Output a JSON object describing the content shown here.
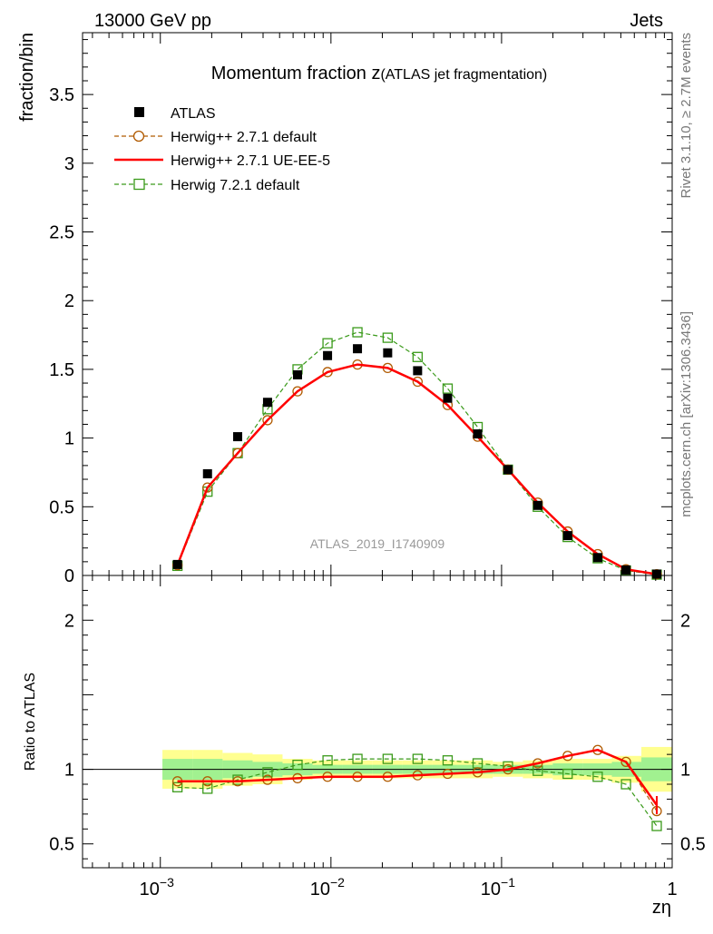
{
  "header": {
    "left": "13000 GeV pp",
    "right": "Jets"
  },
  "side_labels": {
    "rivet": "Rivet 3.1.10, ≥ 2.7M events",
    "mcplots": "mcplots.cern.ch [arXiv:1306.3436]"
  },
  "chart_data": [
    {
      "type": "line",
      "title": "Momentum fraction z",
      "subtitle": "(ATLAS jet fragmentation)",
      "watermark": "ATLAS_2019_I1740909",
      "ylabel": "fraction/bin",
      "xscale": "log",
      "xlim": [
        0.00035,
        1.0
      ],
      "ylim": [
        0,
        3.95
      ],
      "yticks": [
        0,
        0.5,
        1,
        1.5,
        2,
        2.5,
        3,
        3.5
      ],
      "ytick_labels": [
        "0",
        "0.5",
        "1",
        "1.5",
        "2",
        "2.5",
        "3",
        "3.5"
      ],
      "legend_position": "top-left",
      "x": [
        0.00126,
        0.00189,
        0.00284,
        0.00425,
        0.00637,
        0.00955,
        0.0143,
        0.0215,
        0.0322,
        0.0483,
        0.0724,
        0.109,
        0.163,
        0.244,
        0.366,
        0.536,
        0.812
      ],
      "series": [
        {
          "name": "ATLAS",
          "style": "data",
          "color": "#000000",
          "values": [
            0.08,
            0.74,
            1.01,
            1.26,
            1.46,
            1.6,
            1.65,
            1.62,
            1.49,
            1.29,
            1.03,
            0.77,
            0.51,
            0.29,
            0.13,
            0.04,
            0.01
          ]
        },
        {
          "name": "Herwig++ 2.7.1 default",
          "style": "dashed-circle",
          "color": "#b05a00",
          "values": [
            0.075,
            0.64,
            0.89,
            1.13,
            1.34,
            1.48,
            1.535,
            1.51,
            1.41,
            1.24,
            1.01,
            0.77,
            0.53,
            0.32,
            0.155,
            0.045,
            0.009
          ]
        },
        {
          "name": "Herwig++ 2.7.1 UE-EE-5",
          "style": "solid",
          "color": "#ff0000",
          "values": [
            0.075,
            0.64,
            0.89,
            1.13,
            1.34,
            1.48,
            1.535,
            1.51,
            1.41,
            1.24,
            1.01,
            0.77,
            0.53,
            0.32,
            0.155,
            0.045,
            0.009
          ]
        },
        {
          "name": "Herwig 7.2.1 default",
          "style": "dashed-square",
          "color": "#3a9a1a",
          "values": [
            0.07,
            0.61,
            0.89,
            1.21,
            1.5,
            1.69,
            1.77,
            1.73,
            1.59,
            1.36,
            1.08,
            0.77,
            0.5,
            0.28,
            0.125,
            0.036,
            0.006
          ]
        }
      ]
    },
    {
      "type": "line",
      "ylabel": "Ratio to ATLAS",
      "xlabel": "zη",
      "xscale": "log",
      "xlim": [
        0.00035,
        1.0
      ],
      "ylim": [
        0.34,
        2.3
      ],
      "yticks": [
        0.5,
        1,
        2
      ],
      "ytick_labels": [
        "0.5",
        "1",
        "2"
      ],
      "xtick_labels": [
        "10",
        "10",
        "10",
        "1"
      ],
      "xtick_exponents": [
        "−3",
        "−2",
        "−1",
        ""
      ],
      "xtick_values": [
        0.001,
        0.01,
        0.1,
        1
      ],
      "band_total": [
        0.13,
        0.13,
        0.11,
        0.1,
        0.07,
        0.06,
        0.06,
        0.06,
        0.06,
        0.06,
        0.06,
        0.05,
        0.06,
        0.07,
        0.07,
        0.09,
        0.15
      ],
      "band_stat": [
        0.07,
        0.07,
        0.06,
        0.05,
        0.04,
        0.03,
        0.03,
        0.03,
        0.03,
        0.03,
        0.03,
        0.03,
        0.03,
        0.04,
        0.04,
        0.05,
        0.08
      ],
      "series": [
        {
          "name": "Herwig++ 2.7.1 default",
          "color": "#b05a00",
          "values": [
            0.92,
            0.92,
            0.92,
            0.93,
            0.94,
            0.95,
            0.95,
            0.95,
            0.96,
            0.97,
            0.98,
            1.0,
            1.04,
            1.09,
            1.13,
            1.05,
            0.72
          ]
        },
        {
          "name": "Herwig++ 2.7.1 UE-EE-5",
          "color": "#ff0000",
          "values": [
            0.92,
            0.92,
            0.92,
            0.93,
            0.94,
            0.95,
            0.95,
            0.95,
            0.96,
            0.97,
            0.98,
            1.0,
            1.04,
            1.09,
            1.13,
            1.05,
            0.76
          ]
        },
        {
          "name": "Herwig 7.2.1 default",
          "color": "#3a9a1a",
          "values": [
            0.88,
            0.87,
            0.93,
            0.98,
            1.03,
            1.06,
            1.07,
            1.07,
            1.07,
            1.06,
            1.04,
            1.02,
            0.99,
            0.97,
            0.95,
            0.9,
            0.62
          ]
        }
      ]
    }
  ]
}
